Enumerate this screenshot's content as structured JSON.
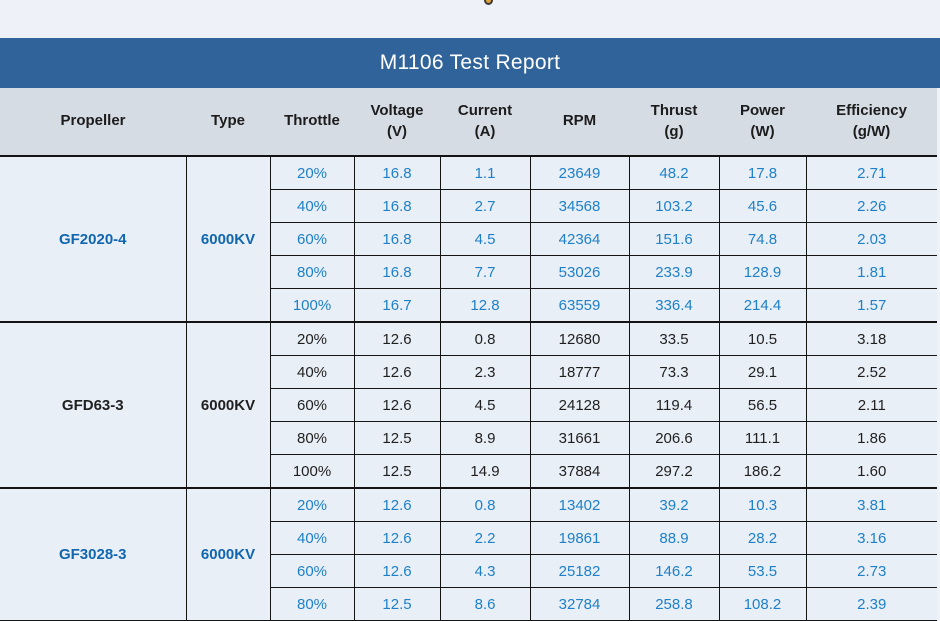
{
  "title": "M1106 Test Report",
  "colors": {
    "title_bar_bg": "#31639b",
    "title_text": "#ffffff",
    "header_bg": "#d6dce4",
    "body_bg": "#e9eff7",
    "page_bg": "#eef2f8",
    "blue_value_text": "#1e80c8",
    "blue_label_text": "#1166b0",
    "dark_text": "#1f1f1f",
    "border": "#141414"
  },
  "table": {
    "columns": [
      {
        "label": "Propeller",
        "unit": ""
      },
      {
        "label": "Type",
        "unit": ""
      },
      {
        "label": "Throttle",
        "unit": ""
      },
      {
        "label": "Voltage",
        "unit": "(V)"
      },
      {
        "label": "Current",
        "unit": "(A)"
      },
      {
        "label": "RPM",
        "unit": ""
      },
      {
        "label": "Thrust",
        "unit": "(g)"
      },
      {
        "label": "Power",
        "unit": "(W)"
      },
      {
        "label": "Efficiency",
        "unit": "(g/W)"
      }
    ],
    "groups": [
      {
        "propeller": "GF2020-4",
        "type": "6000KV",
        "text_style": "blue",
        "rows": [
          {
            "throttle": "20%",
            "voltage": "16.8",
            "current": "1.1",
            "rpm": "23649",
            "thrust": "48.2",
            "power": "17.8",
            "efficiency": "2.71"
          },
          {
            "throttle": "40%",
            "voltage": "16.8",
            "current": "2.7",
            "rpm": "34568",
            "thrust": "103.2",
            "power": "45.6",
            "efficiency": "2.26"
          },
          {
            "throttle": "60%",
            "voltage": "16.8",
            "current": "4.5",
            "rpm": "42364",
            "thrust": "151.6",
            "power": "74.8",
            "efficiency": "2.03"
          },
          {
            "throttle": "80%",
            "voltage": "16.8",
            "current": "7.7",
            "rpm": "53026",
            "thrust": "233.9",
            "power": "128.9",
            "efficiency": "1.81"
          },
          {
            "throttle": "100%",
            "voltage": "16.7",
            "current": "12.8",
            "rpm": "63559",
            "thrust": "336.4",
            "power": "214.4",
            "efficiency": "1.57"
          }
        ]
      },
      {
        "propeller": "GFD63-3",
        "type": "6000KV",
        "text_style": "dark",
        "rows": [
          {
            "throttle": "20%",
            "voltage": "12.6",
            "current": "0.8",
            "rpm": "12680",
            "thrust": "33.5",
            "power": "10.5",
            "efficiency": "3.18"
          },
          {
            "throttle": "40%",
            "voltage": "12.6",
            "current": "2.3",
            "rpm": "18777",
            "thrust": "73.3",
            "power": "29.1",
            "efficiency": "2.52"
          },
          {
            "throttle": "60%",
            "voltage": "12.6",
            "current": "4.5",
            "rpm": "24128",
            "thrust": "119.4",
            "power": "56.5",
            "efficiency": "2.11"
          },
          {
            "throttle": "80%",
            "voltage": "12.5",
            "current": "8.9",
            "rpm": "31661",
            "thrust": "206.6",
            "power": "111.1",
            "efficiency": "1.86"
          },
          {
            "throttle": "100%",
            "voltage": "12.5",
            "current": "14.9",
            "rpm": "37884",
            "thrust": "297.2",
            "power": "186.2",
            "efficiency": "1.60"
          }
        ]
      },
      {
        "propeller": "GF3028-3",
        "type": "6000KV",
        "text_style": "blue",
        "rows": [
          {
            "throttle": "20%",
            "voltage": "12.6",
            "current": "0.8",
            "rpm": "13402",
            "thrust": "39.2",
            "power": "10.3",
            "efficiency": "3.81"
          },
          {
            "throttle": "40%",
            "voltage": "12.6",
            "current": "2.2",
            "rpm": "19861",
            "thrust": "88.9",
            "power": "28.2",
            "efficiency": "3.16"
          },
          {
            "throttle": "60%",
            "voltage": "12.6",
            "current": "4.3",
            "rpm": "25182",
            "thrust": "146.2",
            "power": "53.5",
            "efficiency": "2.73"
          },
          {
            "throttle": "80%",
            "voltage": "12.5",
            "current": "8.6",
            "rpm": "32784",
            "thrust": "258.8",
            "power": "108.2",
            "efficiency": "2.39"
          }
        ]
      }
    ]
  }
}
